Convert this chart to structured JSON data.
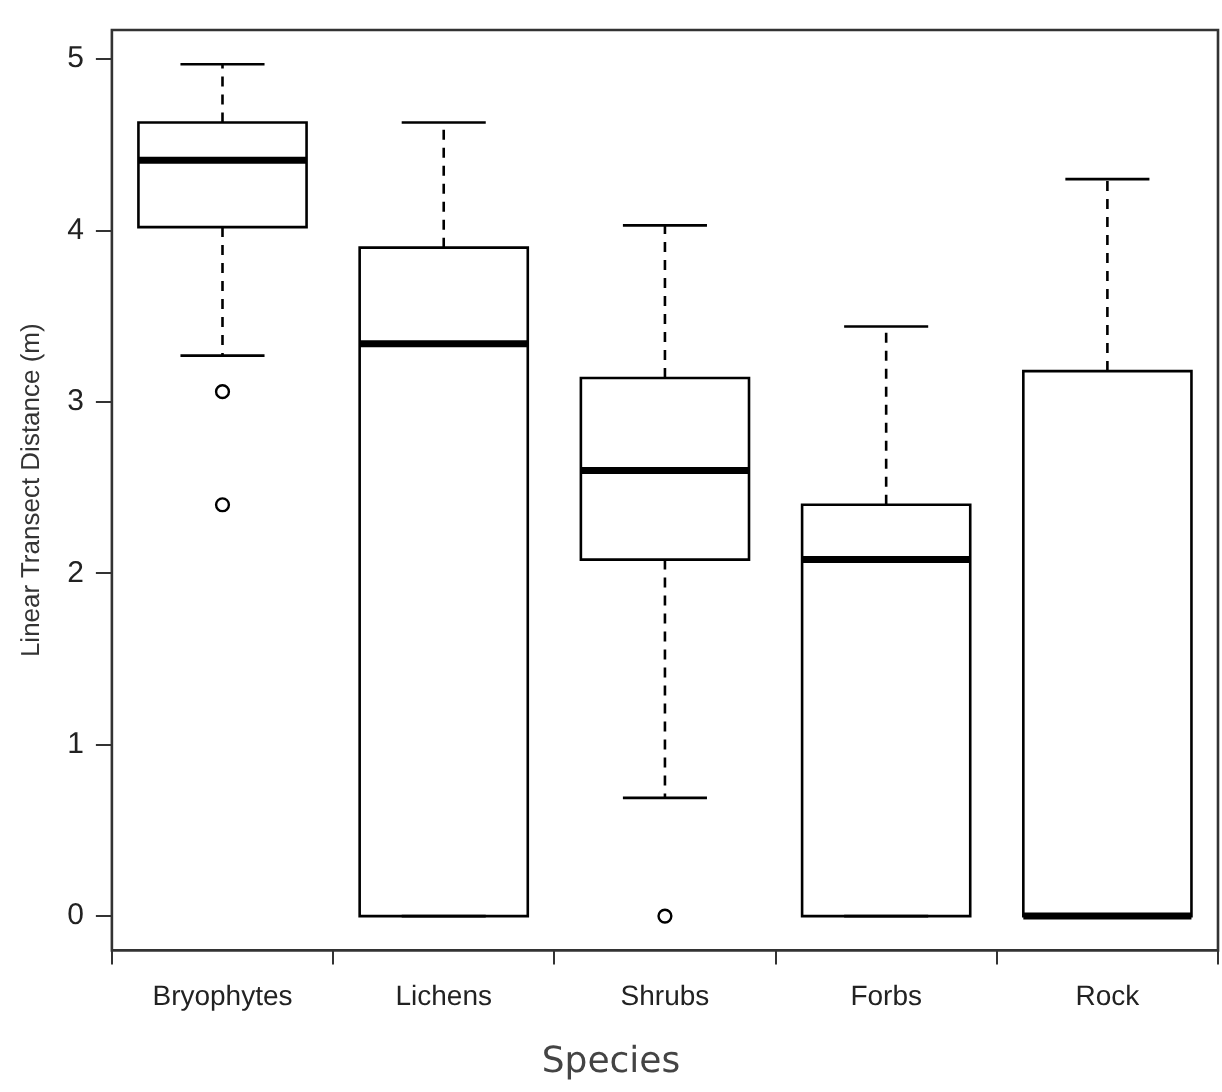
{
  "chart_data": {
    "type": "box",
    "xlabel": "Species",
    "ylabel": "Linear Transect Distance (m)",
    "categories": [
      "Bryophytes",
      "Lichens",
      "Shrubs",
      "Forbs",
      "Rock"
    ],
    "boxes": [
      {
        "low": 3.27,
        "q1": 4.02,
        "median": 4.41,
        "q3": 4.63,
        "high": 4.97,
        "outliers": [
          3.06,
          2.4
        ]
      },
      {
        "low": 0,
        "q1": 0,
        "median": 3.34,
        "q3": 3.9,
        "high": 4.63
      },
      {
        "low": 0.69,
        "q1": 2.08,
        "median": 2.6,
        "q3": 3.14,
        "high": 4.03,
        "outliers": [
          0
        ]
      },
      {
        "low": 0,
        "q1": 0,
        "median": 2.08,
        "q3": 2.4,
        "high": 3.44
      },
      {
        "low": 0,
        "q1": 0,
        "median": 0,
        "q3": 3.18,
        "high": 4.3
      }
    ],
    "color": "#000000",
    "ylim": [
      -0.2,
      5.17
    ],
    "yticks": [
      0,
      1,
      2,
      3,
      4,
      5
    ],
    "grid": false,
    "line_style": "dashed",
    "marker": "circle"
  }
}
